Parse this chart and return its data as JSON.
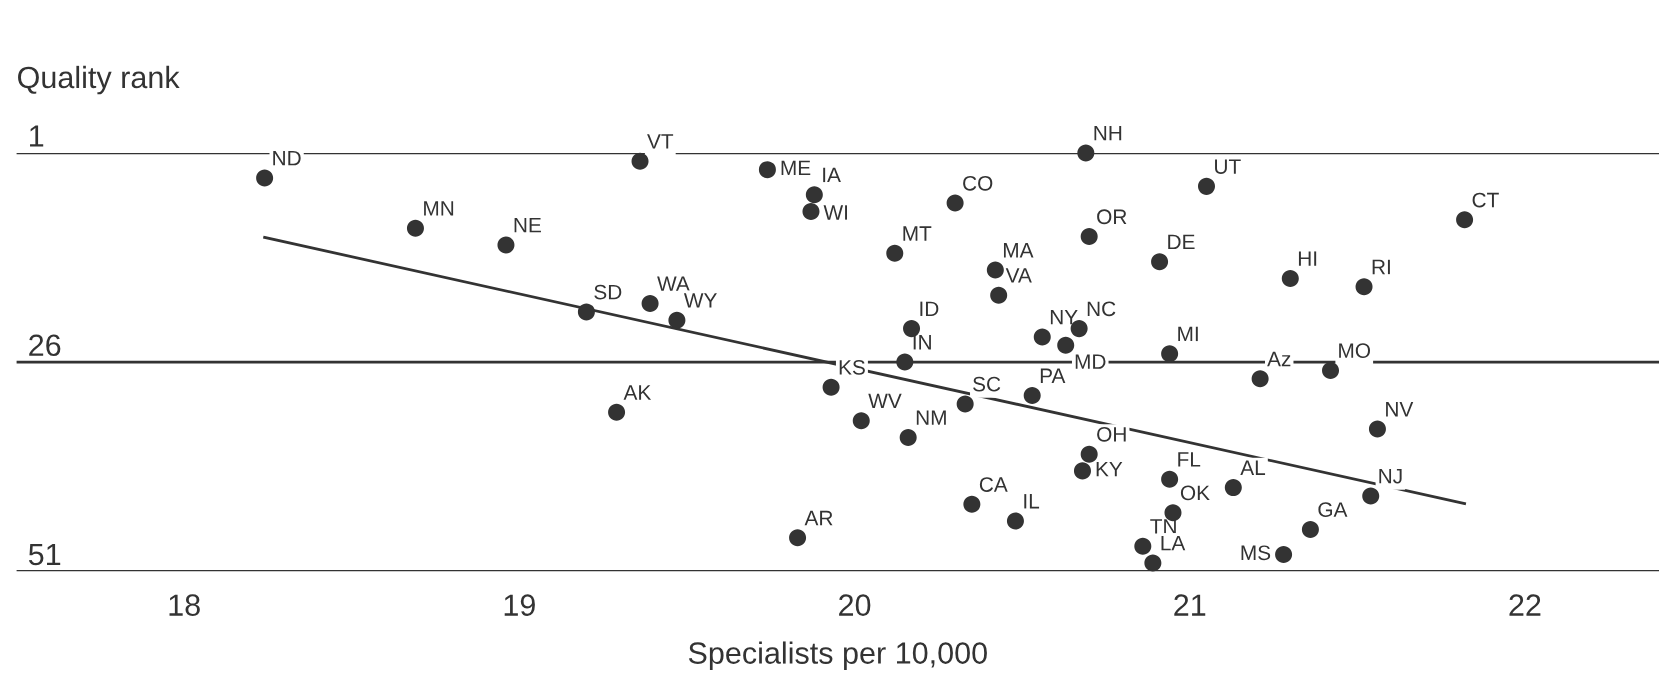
{
  "chart_data": {
    "type": "scatter",
    "ylabel": "Quality rank",
    "xlabel": "Specialists per 10,000",
    "xlim": [
      17.5,
      22.4
    ],
    "xticks": [
      18,
      19,
      20,
      21,
      22
    ],
    "ylim": [
      51,
      1
    ],
    "yticks": [
      1,
      26,
      51
    ],
    "grid": "y",
    "series": [
      {
        "marker": "circle",
        "color": "#333333",
        "x": [
          18.24,
          19.36,
          19.74,
          19.88,
          19.87,
          20.69,
          21.05,
          20.3,
          21.82,
          18.69,
          18.96,
          20.7,
          20.12,
          20.91,
          20.42,
          21.3,
          21.52,
          20.43,
          19.39,
          19.47,
          19.2,
          20.17,
          20.56,
          20.67,
          20.63,
          20.15,
          20.94,
          21.21,
          21.42,
          19.93,
          19.29,
          20.02,
          20.33,
          20.53,
          20.16,
          21.56,
          20.7,
          20.68,
          20.94,
          21.13,
          21.54,
          20.95,
          20.35,
          20.48,
          21.36,
          21.28,
          19.83,
          20.86,
          20.89
        ],
        "values": [
          4,
          2,
          3,
          6,
          8,
          1,
          5,
          7,
          9,
          10,
          12,
          11,
          13,
          14,
          15,
          16,
          17,
          18,
          19,
          21,
          20,
          22,
          23,
          22,
          24,
          26,
          25,
          28,
          27,
          29,
          32,
          33,
          31,
          30,
          35,
          34,
          37,
          39,
          40,
          41,
          42,
          44,
          43,
          45,
          46,
          49,
          47,
          48,
          50
        ]
      },
      {
        "type": "line",
        "marker": "none",
        "color": "#333333",
        "x": [
          18.24,
          21.82
        ],
        "values": [
          11.1,
          42.9
        ]
      }
    ],
    "annotations": [
      {
        "text": "ND",
        "x": 18.24,
        "y": 4
      },
      {
        "text": "VT",
        "x": 19.36,
        "y": 2
      },
      {
        "text": "ME",
        "x": 19.74,
        "y": 3
      },
      {
        "text": "IA",
        "x": 19.88,
        "y": 6
      },
      {
        "text": "WI",
        "x": 19.87,
        "y": 8
      },
      {
        "text": "NH",
        "x": 20.69,
        "y": 1
      },
      {
        "text": "UT",
        "x": 21.05,
        "y": 5
      },
      {
        "text": "CO",
        "x": 20.3,
        "y": 7
      },
      {
        "text": "CT",
        "x": 21.82,
        "y": 9
      },
      {
        "text": "MN",
        "x": 18.69,
        "y": 10
      },
      {
        "text": "NE",
        "x": 18.96,
        "y": 12
      },
      {
        "text": "OR",
        "x": 20.7,
        "y": 11
      },
      {
        "text": "MT",
        "x": 20.12,
        "y": 13
      },
      {
        "text": "DE",
        "x": 20.91,
        "y": 14
      },
      {
        "text": "MA",
        "x": 20.42,
        "y": 15
      },
      {
        "text": "HI",
        "x": 21.3,
        "y": 16
      },
      {
        "text": "RI",
        "x": 21.52,
        "y": 17
      },
      {
        "text": "VA",
        "x": 20.43,
        "y": 18
      },
      {
        "text": "WA",
        "x": 19.39,
        "y": 19
      },
      {
        "text": "WY",
        "x": 19.47,
        "y": 21
      },
      {
        "text": "SD",
        "x": 19.2,
        "y": 20
      },
      {
        "text": "ID",
        "x": 20.17,
        "y": 22
      },
      {
        "text": "NY",
        "x": 20.56,
        "y": 23
      },
      {
        "text": "NC",
        "x": 20.67,
        "y": 22
      },
      {
        "text": "MD",
        "x": 20.63,
        "y": 24
      },
      {
        "text": "IN",
        "x": 20.15,
        "y": 26
      },
      {
        "text": "MI",
        "x": 20.94,
        "y": 25
      },
      {
        "text": "Az",
        "x": 21.21,
        "y": 28
      },
      {
        "text": "MO",
        "x": 21.42,
        "y": 27
      },
      {
        "text": "KS",
        "x": 19.93,
        "y": 29
      },
      {
        "text": "AK",
        "x": 19.29,
        "y": 32
      },
      {
        "text": "WV",
        "x": 20.02,
        "y": 33
      },
      {
        "text": "SC",
        "x": 20.33,
        "y": 31
      },
      {
        "text": "PA",
        "x": 20.53,
        "y": 30
      },
      {
        "text": "NM",
        "x": 20.16,
        "y": 35
      },
      {
        "text": "NV",
        "x": 21.56,
        "y": 34
      },
      {
        "text": "OH",
        "x": 20.7,
        "y": 37
      },
      {
        "text": "KY",
        "x": 20.68,
        "y": 39
      },
      {
        "text": "FL",
        "x": 20.94,
        "y": 40
      },
      {
        "text": "AL",
        "x": 21.13,
        "y": 41
      },
      {
        "text": "NJ",
        "x": 21.54,
        "y": 42
      },
      {
        "text": "OK",
        "x": 20.95,
        "y": 44
      },
      {
        "text": "CA",
        "x": 20.35,
        "y": 43
      },
      {
        "text": "IL",
        "x": 20.48,
        "y": 45
      },
      {
        "text": "GA",
        "x": 21.36,
        "y": 46
      },
      {
        "text": "MS",
        "x": 21.28,
        "y": 49
      },
      {
        "text": "AR",
        "x": 19.83,
        "y": 47
      },
      {
        "text": "TN",
        "x": 20.86,
        "y": 48
      },
      {
        "text": "LA",
        "x": 20.89,
        "y": 50
      }
    ]
  }
}
